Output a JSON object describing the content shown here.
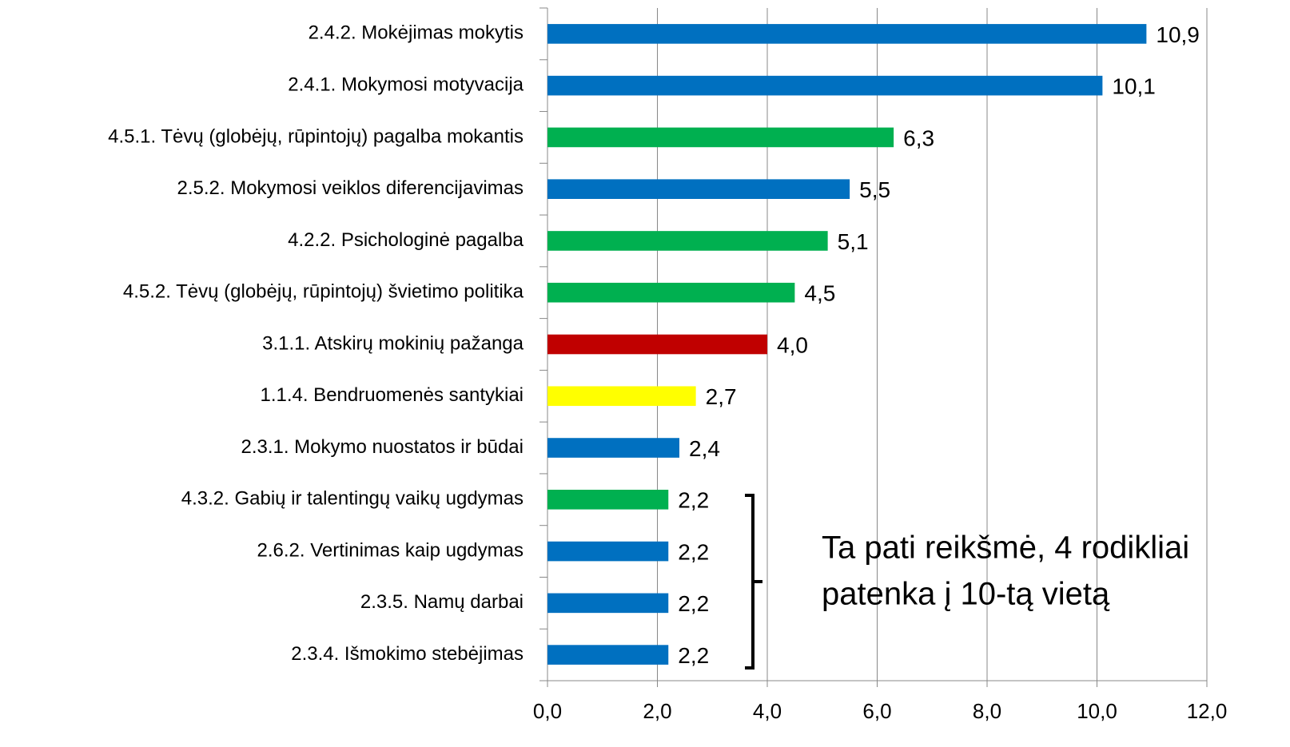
{
  "chart_data": {
    "type": "bar",
    "orientation": "horizontal",
    "categories": [
      "2.4.2. Mokėjimas mokytis",
      "2.4.1. Mokymosi motyvacija",
      "4.5.1. Tėvų (globėjų, rūpintojų) pagalba mokantis",
      "2.5.2. Mokymosi veiklos diferencijavimas",
      "4.2.2. Psichologinė pagalba",
      "4.5.2. Tėvų (globėjų, rūpintojų) švietimo politika",
      "3.1.1. Atskirų mokinių pažanga",
      "1.1.4. Bendruomenės  santykiai",
      "2.3.1. Mokymo nuostatos ir būdai",
      "4.3.2. Gabių ir talentingų vaikų ugdymas",
      "2.6.2. Vertinimas kaip ugdymas",
      "2.3.5. Namų darbai",
      "2.3.4. Išmokimo stebėjimas"
    ],
    "values": [
      10.9,
      10.1,
      6.3,
      5.5,
      5.1,
      4.5,
      4.0,
      2.7,
      2.4,
      2.2,
      2.2,
      2.2,
      2.2
    ],
    "value_labels": [
      "10,9",
      "10,1",
      "6,3",
      "5,5",
      "5,1",
      "4,5",
      "4,0",
      "2,7",
      "2,4",
      "2,2",
      "2,2",
      "2,2",
      "2,2"
    ],
    "colors": [
      "#0070c0",
      "#0070c0",
      "#00b050",
      "#0070c0",
      "#00b050",
      "#00b050",
      "#c00000",
      "#ffff00",
      "#0070c0",
      "#00b050",
      "#0070c0",
      "#0070c0",
      "#0070c0"
    ],
    "xlim": [
      0,
      12
    ],
    "xticks": [
      {
        "value": 0,
        "label": "0,0"
      },
      {
        "value": 2,
        "label": "2,0"
      },
      {
        "value": 4,
        "label": "4,0"
      },
      {
        "value": 6,
        "label": "6,0"
      },
      {
        "value": 8,
        "label": "8,0"
      },
      {
        "value": 10,
        "label": "10,0"
      },
      {
        "value": 12,
        "label": "12,0"
      }
    ],
    "grid": true,
    "annotation": [
      "Ta pati reikšmė, 4 rodikliai",
      "patenka į 10-tą vietą"
    ]
  }
}
